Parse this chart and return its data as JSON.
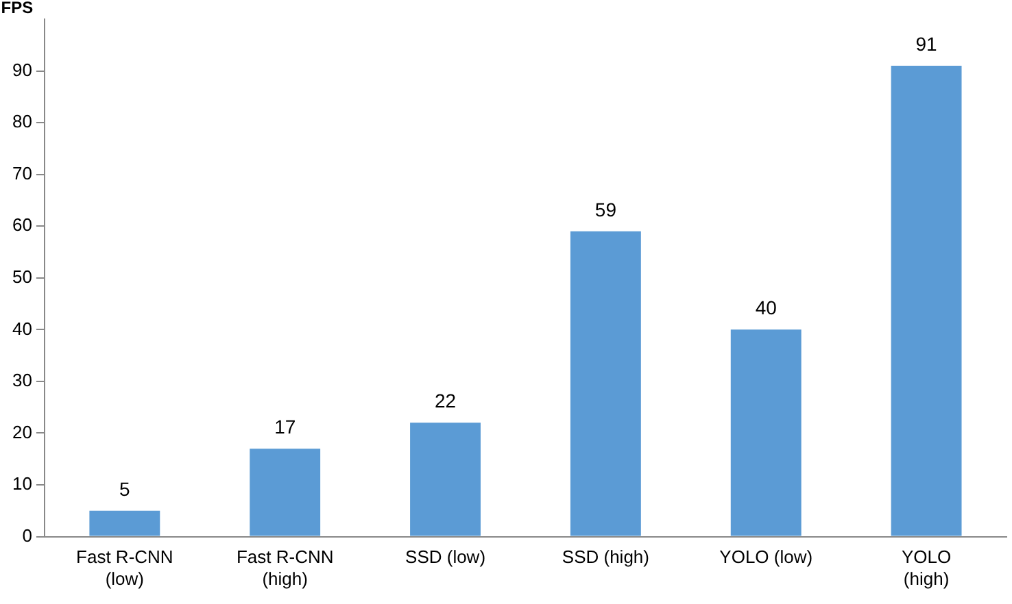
{
  "chart_data": {
    "type": "bar",
    "ylabel": "FPS",
    "categories": [
      "Fast R-CNN (low)",
      "Fast R-CNN (high)",
      "SSD (low)",
      "SSD (high)",
      "YOLO (low)",
      "YOLO (high)"
    ],
    "values": [
      5,
      17,
      22,
      59,
      40,
      91
    ],
    "color": "#5b9bd5",
    "ylim": [
      0,
      100
    ],
    "yticks": [
      0,
      10,
      20,
      30,
      40,
      50,
      60,
      70,
      80,
      90
    ],
    "grid": false,
    "legend": false,
    "data_labels": true
  }
}
